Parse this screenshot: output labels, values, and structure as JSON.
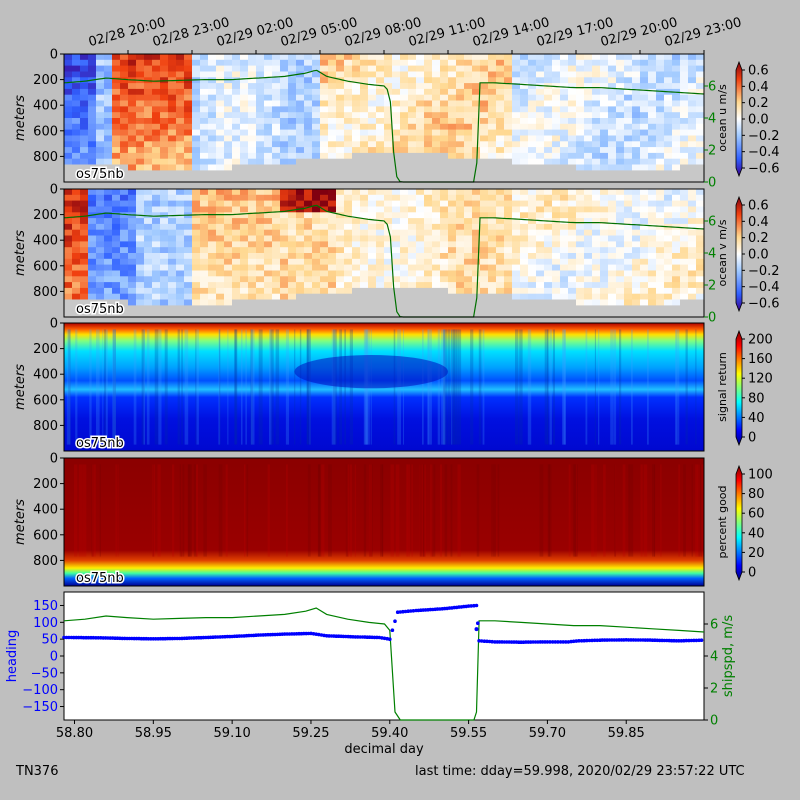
{
  "chart_data": [
    {
      "type": "heatmap",
      "name": "ocean-u",
      "label": "os75nb",
      "ylabel": "meters",
      "yticks": [
        "0",
        "200",
        "400",
        "600",
        "800"
      ],
      "ylim": [
        0,
        1000
      ],
      "colorbar": {
        "label": "ocean u m/s",
        "ticks": [
          "0.6",
          "0.4",
          "0.2",
          "0.0",
          "−0.2",
          "−0.4",
          "−0.6"
        ],
        "range": [
          -0.6,
          0.6
        ],
        "colormap": "bwr"
      },
      "right_axis": {
        "ticks": [
          "6",
          "4",
          "2",
          "0"
        ],
        "range": [
          0,
          8
        ]
      },
      "top_axis_ticks": [
        "02/28 20:00",
        "02/28 23:00",
        "02/29 02:00",
        "02/29 05:00",
        "02/29 08:00",
        "02/29 11:00",
        "02/29 14:00",
        "02/29 17:00",
        "02/29 20:00",
        "02/29 23:00"
      ]
    },
    {
      "type": "heatmap",
      "name": "ocean-v",
      "label": "os75nb",
      "ylabel": "meters",
      "yticks": [
        "0",
        "200",
        "400",
        "600",
        "800"
      ],
      "ylim": [
        0,
        1000
      ],
      "colorbar": {
        "label": "ocean v m/s",
        "ticks": [
          "0.6",
          "0.4",
          "0.2",
          "0.0",
          "−0.2",
          "−0.4",
          "−0.6"
        ],
        "range": [
          -0.6,
          0.6
        ],
        "colormap": "bwr"
      },
      "right_axis": {
        "ticks": [
          "6",
          "4",
          "2",
          "0"
        ],
        "range": [
          0,
          8
        ]
      }
    },
    {
      "type": "heatmap",
      "name": "signal-return",
      "label": "os75nb",
      "ylabel": "meters",
      "yticks": [
        "0",
        "200",
        "400",
        "600",
        "800"
      ],
      "ylim": [
        0,
        1000
      ],
      "colorbar": {
        "label": "signal return",
        "ticks": [
          "200",
          "160",
          "120",
          "80",
          "40",
          "0"
        ],
        "range": [
          0,
          200
        ],
        "colormap": "jet"
      }
    },
    {
      "type": "heatmap",
      "name": "percent-good",
      "label": "os75nb",
      "ylabel": "meters",
      "yticks": [
        "0",
        "200",
        "400",
        "600",
        "800"
      ],
      "ylim": [
        0,
        1000
      ],
      "colorbar": {
        "label": "percent good",
        "ticks": [
          "100",
          "80",
          "60",
          "40",
          "20",
          "0"
        ],
        "range": [
          0,
          100
        ],
        "colormap": "jet"
      }
    },
    {
      "type": "scatter",
      "name": "heading-shipspd",
      "xlabel": "decimal day",
      "xticks": [
        "58.80",
        "58.95",
        "59.10",
        "59.25",
        "59.40",
        "59.55",
        "59.70",
        "59.85"
      ],
      "xlim": [
        58.78,
        59.998
      ],
      "ylabel": "heading",
      "yticks": [
        "150",
        "100",
        "50",
        "0",
        "−50",
        "−100",
        "−150"
      ],
      "ylim": [
        -190,
        190
      ],
      "y2label": "shipspd, m/s",
      "y2ticks": [
        "6",
        "4",
        "2",
        "0"
      ],
      "y2lim": [
        0,
        8
      ],
      "heading_color": "#0000ff",
      "shipspd_color": "#008000",
      "heading_points": [
        [
          58.78,
          55
        ],
        [
          58.85,
          54
        ],
        [
          58.9,
          52
        ],
        [
          58.95,
          51
        ],
        [
          59.0,
          52
        ],
        [
          59.05,
          55
        ],
        [
          59.1,
          58
        ],
        [
          59.15,
          62
        ],
        [
          59.2,
          65
        ],
        [
          59.25,
          67
        ],
        [
          59.28,
          60
        ],
        [
          59.33,
          57
        ],
        [
          59.38,
          55
        ],
        [
          59.4,
          50
        ],
        [
          59.415,
          130
        ],
        [
          59.45,
          135
        ],
        [
          59.5,
          140
        ],
        [
          59.55,
          148
        ],
        [
          59.565,
          150
        ],
        [
          59.57,
          45
        ],
        [
          59.6,
          42
        ],
        [
          59.65,
          41
        ],
        [
          59.7,
          42
        ],
        [
          59.74,
          42
        ],
        [
          59.76,
          45
        ],
        [
          59.8,
          47
        ],
        [
          59.85,
          48
        ],
        [
          59.9,
          47
        ],
        [
          59.95,
          45
        ],
        [
          59.998,
          47
        ]
      ],
      "shipspd_points": [
        [
          58.78,
          6.2
        ],
        [
          58.82,
          6.3
        ],
        [
          58.86,
          6.5
        ],
        [
          58.9,
          6.4
        ],
        [
          58.95,
          6.3
        ],
        [
          59.0,
          6.35
        ],
        [
          59.05,
          6.4
        ],
        [
          59.1,
          6.4
        ],
        [
          59.15,
          6.5
        ],
        [
          59.2,
          6.6
        ],
        [
          59.24,
          6.8
        ],
        [
          59.26,
          7.0
        ],
        [
          59.28,
          6.6
        ],
        [
          59.32,
          6.3
        ],
        [
          59.36,
          6.1
        ],
        [
          59.39,
          6.0
        ],
        [
          59.4,
          5.6
        ],
        [
          59.41,
          0.5
        ],
        [
          59.42,
          0
        ],
        [
          59.5,
          0
        ],
        [
          59.56,
          0
        ],
        [
          59.565,
          0.5
        ],
        [
          59.57,
          6.2
        ],
        [
          59.6,
          6.2
        ],
        [
          59.65,
          6.1
        ],
        [
          59.7,
          6.0
        ],
        [
          59.75,
          5.9
        ],
        [
          59.8,
          5.9
        ],
        [
          59.85,
          5.8
        ],
        [
          59.9,
          5.7
        ],
        [
          59.95,
          5.6
        ],
        [
          59.998,
          5.5
        ]
      ]
    }
  ],
  "footer": {
    "cruise": "TN376",
    "last_time": "last time: dday=59.998,  2020/02/29 23:57:22 UTC"
  }
}
